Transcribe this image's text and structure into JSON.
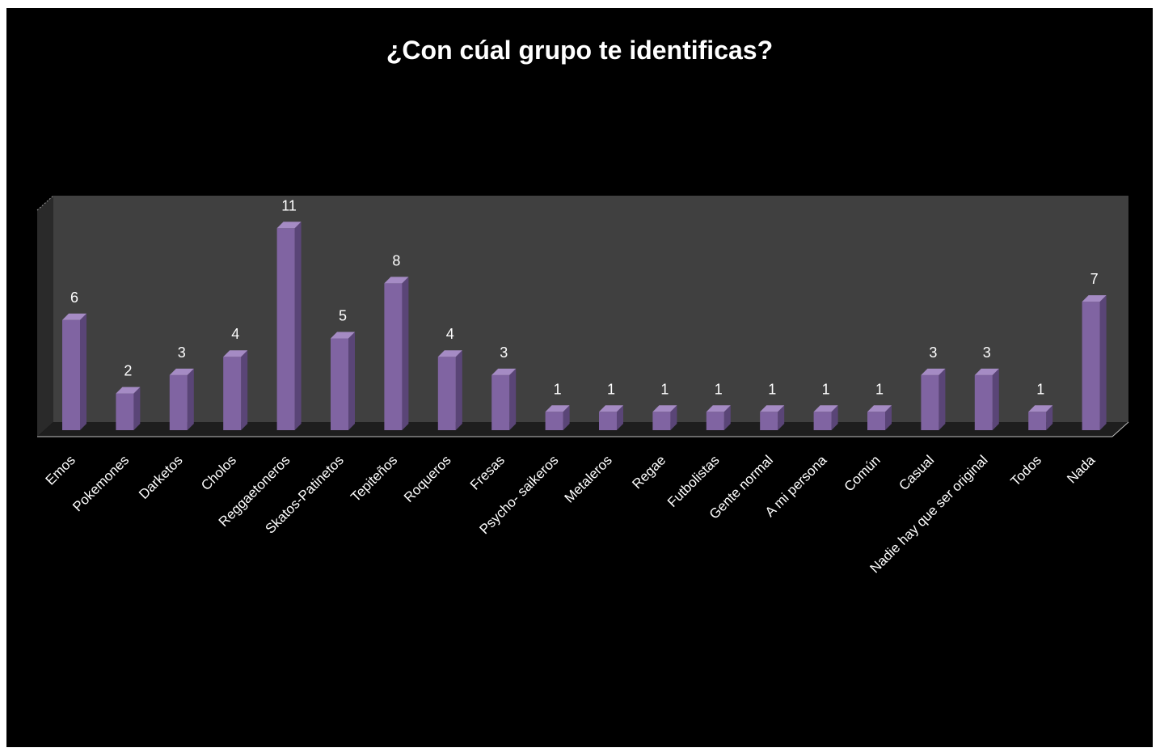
{
  "chart_data": {
    "type": "bar",
    "title": "¿Con cúal grupo te identificas?",
    "xlabel": "",
    "ylabel": "",
    "categories": [
      "Emos",
      "Pokemones",
      "Darketos",
      "Cholos",
      "Reggaetoneros",
      "Skatos-Patinetos",
      "Tepiteños",
      "Roqueros",
      "Fresas",
      "Psycho- saikeros",
      "Metaleros",
      "Regae",
      "Futbolistas",
      "Gente normal",
      "A mi persona",
      "Común",
      "Casual",
      "Nadie hay que ser original",
      "Todos",
      "Nada"
    ],
    "values": [
      6,
      2,
      3,
      4,
      11,
      5,
      8,
      4,
      3,
      1,
      1,
      1,
      1,
      1,
      1,
      1,
      3,
      3,
      1,
      7
    ],
    "ylim": [
      0,
      12
    ],
    "grid": false,
    "legend": "none",
    "colors": {
      "background": "#000000",
      "plot_wall": "#404040",
      "plot_floor": "#1e1e1e",
      "bar_front": "#8064a2",
      "bar_side": "#5a4577",
      "bar_top": "#a58bc4",
      "text": "#ffffff"
    }
  }
}
